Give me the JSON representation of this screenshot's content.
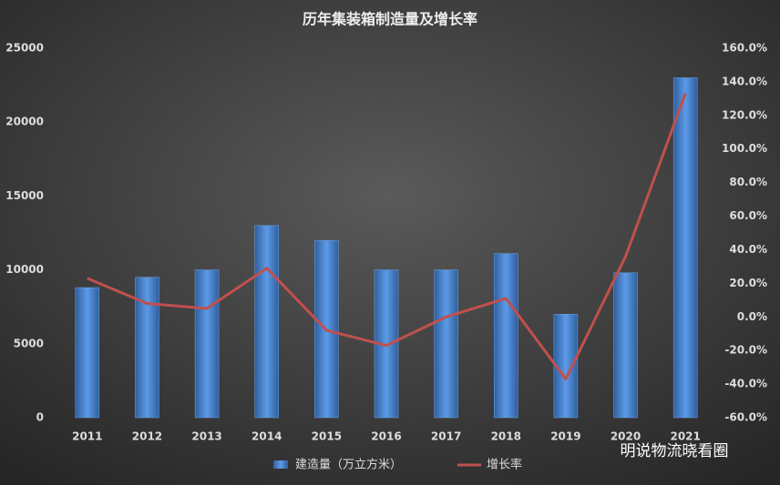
{
  "chart_data": {
    "type": "bar_line",
    "title": "历年集装箱制造量及增长率",
    "categories": [
      "2011",
      "2012",
      "2013",
      "2014",
      "2015",
      "2016",
      "2017",
      "2018",
      "2019",
      "2020",
      "2021"
    ],
    "series": [
      {
        "name": "建造量（万立方米）",
        "type": "bar",
        "color": "#4a86d4",
        "values": [
          8800,
          9500,
          10000,
          13000,
          12000,
          10000,
          10000,
          11100,
          7000,
          9800,
          23000
        ]
      },
      {
        "name": "增长率",
        "type": "line",
        "axis": "y2",
        "color": "#c0504d",
        "values": [
          23,
          8,
          5,
          29,
          -8,
          -17,
          0,
          11,
          -37,
          36,
          133
        ]
      }
    ],
    "ylim": [
      0,
      25000
    ],
    "yticks": [
      0,
      5000,
      10000,
      15000,
      20000,
      25000
    ],
    "y2lim": [
      -60,
      160
    ],
    "y2ticks": [
      {
        "value": -60,
        "label": "-60.0%"
      },
      {
        "value": -40,
        "label": "-40.0%"
      },
      {
        "value": -20,
        "label": "-20.0%"
      },
      {
        "value": 0,
        "label": "0.0%"
      },
      {
        "value": 20,
        "label": "20.0%"
      },
      {
        "value": 40,
        "label": "40.0%"
      },
      {
        "value": 60,
        "label": "60.0%"
      },
      {
        "value": 80,
        "label": "80.0%"
      },
      {
        "value": 100,
        "label": "100.0%"
      },
      {
        "value": 120,
        "label": "120.0%"
      },
      {
        "value": 140,
        "label": "140.0%"
      },
      {
        "value": 160,
        "label": "160.0%"
      }
    ],
    "legend": "bottom",
    "annotation": "明说物流晓看圈"
  }
}
